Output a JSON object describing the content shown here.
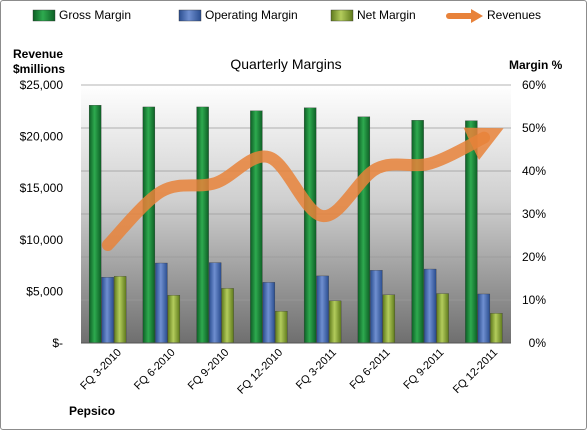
{
  "chart_data": {
    "type": "bar",
    "title": "Quarterly Margins",
    "company_label": "Pepsico",
    "categories": [
      "FQ 3-2010",
      "FQ 6-2010",
      "FQ 9-2010",
      "FQ 12-2010",
      "FQ 3-2011",
      "FQ 6-2011",
      "FQ 9-2011",
      "FQ 12-2011"
    ],
    "y_left": {
      "label_line1": "Revenue",
      "label_line2": "$millions",
      "ticks": [
        "$-",
        "$5,000",
        "$10,000",
        "$15,000",
        "$20,000",
        "$25,000"
      ],
      "ylim": [
        0,
        25000
      ]
    },
    "y_right": {
      "label": "Margin %",
      "ticks": [
        "0%",
        "10%",
        "20%",
        "30%",
        "40%",
        "50%",
        "60%"
      ],
      "ylim": [
        0,
        60
      ]
    },
    "series": [
      {
        "name": "Gross Margin",
        "axis": "right",
        "kind": "bar",
        "color": "#1f8a3c",
        "values": [
          55.3,
          54.9,
          54.9,
          54.0,
          54.7,
          52.6,
          51.8,
          51.7
        ]
      },
      {
        "name": "Operating Margin",
        "axis": "right",
        "kind": "bar",
        "color": "#4a6fb5",
        "values": [
          15.3,
          18.6,
          18.7,
          14.1,
          15.6,
          16.9,
          17.2,
          11.4
        ]
      },
      {
        "name": "Net Margin",
        "axis": "right",
        "kind": "bar",
        "color": "#8fad3a",
        "values": [
          15.5,
          11.1,
          12.7,
          7.4,
          9.8,
          11.2,
          11.5,
          6.9
        ]
      },
      {
        "name": "Revenues",
        "axis": "left",
        "kind": "line",
        "color": "#e8823a",
        "values": [
          9500,
          14700,
          15500,
          18000,
          12300,
          16900,
          17400,
          19900
        ]
      }
    ],
    "legend_position": "top",
    "grid": true
  }
}
